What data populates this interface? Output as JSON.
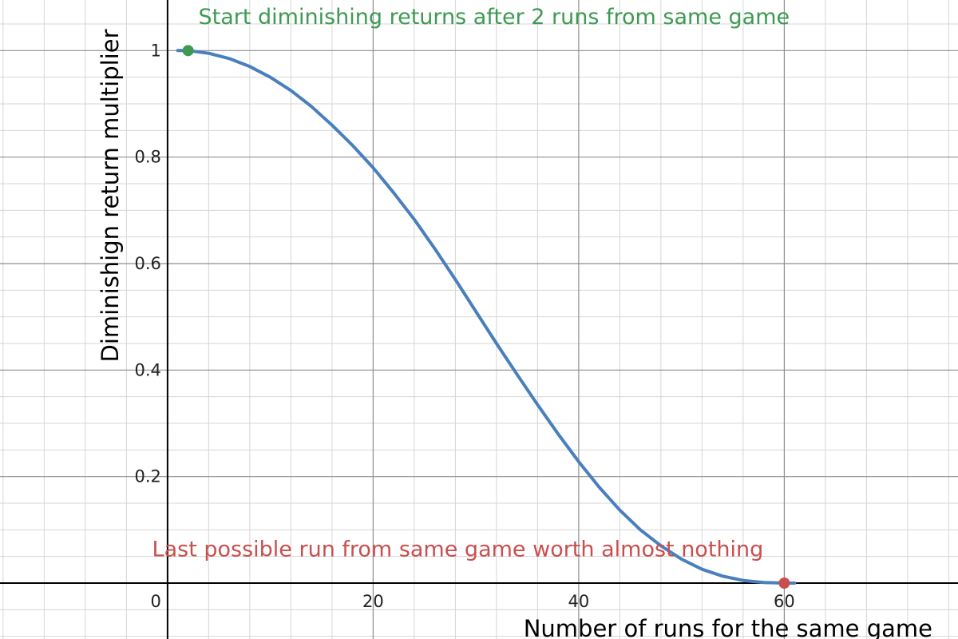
{
  "chart_data": {
    "type": "line",
    "title": "",
    "xlabel": "Number of runs for the same game",
    "ylabel": "Diminishign return multiplier",
    "xlim": [
      -16.3,
      76.9
    ],
    "ylim": [
      -0.105,
      1.095
    ],
    "grid": true,
    "x_ticks": [
      {
        "value": 0,
        "label": "0"
      },
      {
        "value": 20,
        "label": "20"
      },
      {
        "value": 40,
        "label": "40"
      },
      {
        "value": 60,
        "label": "60"
      }
    ],
    "y_ticks": [
      {
        "value": 0.2,
        "label": "0.2"
      },
      {
        "value": 0.4,
        "label": "0.4"
      },
      {
        "value": 0.6,
        "label": "0.6"
      },
      {
        "value": 0.8,
        "label": "0.8"
      },
      {
        "value": 1,
        "label": "1"
      }
    ],
    "series": [
      {
        "color": "#4a7fbd",
        "x": [
          1,
          2,
          4,
          6,
          8,
          10,
          12,
          14,
          16,
          18,
          20,
          22,
          24,
          26,
          28,
          30,
          32,
          34,
          36,
          38,
          40,
          42,
          44,
          46,
          48,
          50,
          52,
          54,
          56,
          58,
          60,
          61
        ],
        "y": [
          1.0,
          1.0,
          0.995,
          0.985,
          0.97,
          0.95,
          0.925,
          0.895,
          0.86,
          0.822,
          0.78,
          0.733,
          0.683,
          0.628,
          0.57,
          0.51,
          0.45,
          0.392,
          0.335,
          0.28,
          0.228,
          0.18,
          0.137,
          0.1,
          0.07,
          0.045,
          0.026,
          0.013,
          0.005,
          0.001,
          0.0,
          0.0
        ]
      }
    ],
    "points": [
      {
        "x": 2,
        "y": 1,
        "color": "#3d9a52"
      },
      {
        "x": 60,
        "y": 0,
        "color": "#c94f4f"
      }
    ],
    "annotations": [
      {
        "text": "Start diminishing returns after 2 runs from same game",
        "x": 3,
        "y": 1.05,
        "color": "#3d9a52"
      },
      {
        "text": "Last possible run from same game worth almost nothing",
        "x": -1.5,
        "y": 0.05,
        "color": "#c94f4f"
      }
    ]
  }
}
